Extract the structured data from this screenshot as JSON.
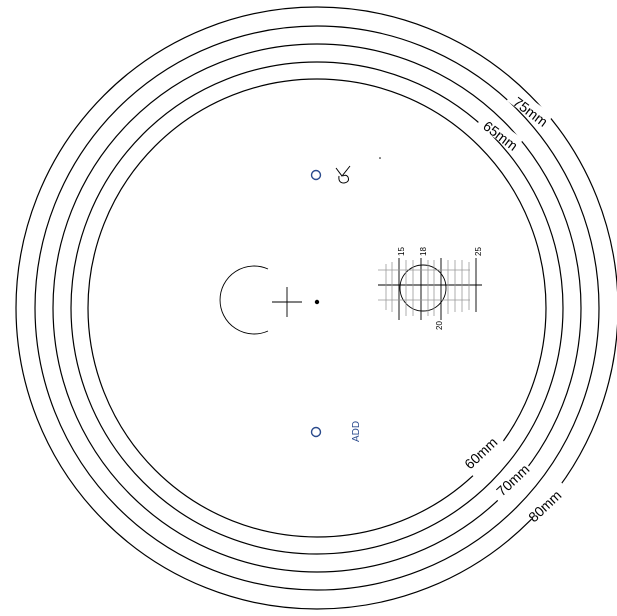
{
  "rings": [
    {
      "id": "ring-80",
      "label": "80mm"
    },
    {
      "id": "ring-75",
      "label": "75mm"
    },
    {
      "id": "ring-70",
      "label": "70mm"
    },
    {
      "id": "ring-65",
      "label": "65mm"
    },
    {
      "id": "ring-60",
      "label": "60mm"
    }
  ],
  "gauge": {
    "labels": {
      "t15": "15",
      "t18": "18",
      "t25": "25",
      "t20": "20"
    }
  },
  "add_label": "ADD",
  "colors": {
    "line": "#000000",
    "accent": "#2a4a8c"
  }
}
